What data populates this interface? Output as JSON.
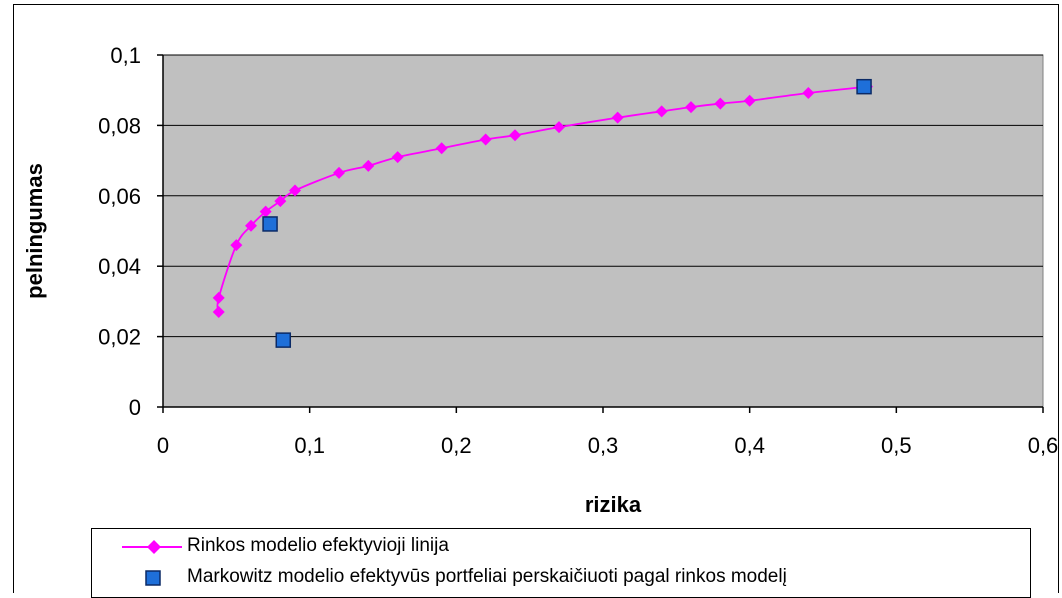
{
  "colors": {
    "plot_bg": "#C0C0C0",
    "series_line": "#FF00FF",
    "markowitz_fill": "#1E6FD9",
    "markowitz_stroke": "#0B2A66",
    "gridline": "#000000"
  },
  "chart_data": {
    "type": "scatter",
    "title": "",
    "xlabel": "rizika",
    "ylabel": "pelningumas",
    "xlim": [
      0,
      0.6
    ],
    "ylim": [
      0,
      0.1
    ],
    "x_ticks": [
      "0",
      "0,1",
      "0,2",
      "0,3",
      "0,4",
      "0,5",
      "0,6"
    ],
    "y_ticks": [
      "0",
      "0,02",
      "0,04",
      "0,06",
      "0,08",
      "0,1"
    ],
    "grid": "horizontal",
    "legend_position": "bottom",
    "series": [
      {
        "name": "Rinkos modelio efektyvioji linija",
        "style": "line-diamond",
        "x": [
          0.038,
          0.038,
          0.05,
          0.06,
          0.07,
          0.08,
          0.09,
          0.12,
          0.14,
          0.16,
          0.19,
          0.22,
          0.24,
          0.27,
          0.31,
          0.34,
          0.36,
          0.38,
          0.4,
          0.44,
          0.48
        ],
        "y": [
          0.027,
          0.031,
          0.046,
          0.0515,
          0.0555,
          0.0585,
          0.0615,
          0.0665,
          0.0685,
          0.071,
          0.0735,
          0.076,
          0.0772,
          0.0795,
          0.0822,
          0.084,
          0.0852,
          0.0862,
          0.087,
          0.0892,
          0.091
        ]
      },
      {
        "name": "Markowitz modelio efektyvūs portfeliai perskaičiuoti pagal rinkos modelį",
        "style": "square-marker",
        "x": [
          0.073,
          0.082,
          0.478
        ],
        "y": [
          0.052,
          0.019,
          0.091
        ]
      }
    ]
  }
}
